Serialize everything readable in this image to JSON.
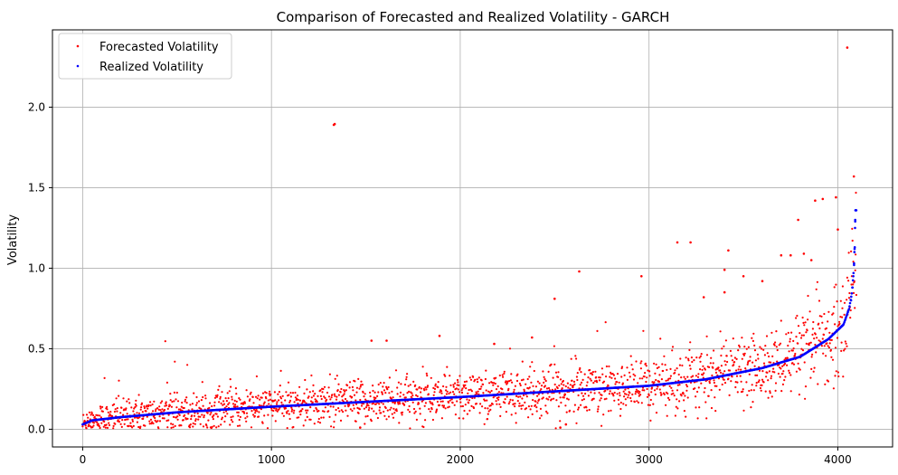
{
  "chart_data": {
    "type": "scatter",
    "title": "Comparison of Forecasted and Realized Volatility - GARCH",
    "xlabel": "",
    "ylabel": "Volatility",
    "xlim": [
      -160,
      4290
    ],
    "ylim": [
      -0.11,
      2.48
    ],
    "x_ticks": [
      0,
      1000,
      2000,
      3000,
      4000
    ],
    "y_ticks": [
      0.0,
      0.5,
      1.0,
      1.5,
      2.0
    ],
    "x_tick_labels": [
      "0",
      "1000",
      "2000",
      "3000",
      "4000"
    ],
    "y_tick_labels": [
      "0.0",
      "0.5",
      "1.0",
      "1.5",
      "2.0"
    ],
    "grid": true,
    "legend_position": "top-left",
    "n_points": 4100,
    "series": [
      {
        "name": "Forecasted Volatility",
        "color": "#ff0000",
        "marker": "point",
        "description": "noisy scatter around realized curve",
        "outliers": [
          {
            "x": 1330,
            "y": 1.89
          },
          {
            "x": 1335,
            "y": 1.895
          },
          {
            "x": 4050,
            "y": 2.37
          },
          {
            "x": 4085,
            "y": 1.57
          },
          {
            "x": 3880,
            "y": 1.42
          },
          {
            "x": 3920,
            "y": 1.43
          },
          {
            "x": 3990,
            "y": 1.44
          },
          {
            "x": 4000,
            "y": 1.24
          },
          {
            "x": 3790,
            "y": 1.3
          },
          {
            "x": 3150,
            "y": 1.16
          },
          {
            "x": 3220,
            "y": 1.16
          },
          {
            "x": 3420,
            "y": 1.11
          },
          {
            "x": 3400,
            "y": 0.99
          },
          {
            "x": 3500,
            "y": 0.95
          },
          {
            "x": 2960,
            "y": 0.95
          },
          {
            "x": 2630,
            "y": 0.98
          },
          {
            "x": 2500,
            "y": 0.81
          },
          {
            "x": 3400,
            "y": 0.85
          },
          {
            "x": 3290,
            "y": 0.82
          },
          {
            "x": 3600,
            "y": 0.92
          },
          {
            "x": 3700,
            "y": 1.08
          },
          {
            "x": 3750,
            "y": 1.08
          },
          {
            "x": 3820,
            "y": 1.09
          },
          {
            "x": 3860,
            "y": 1.05
          },
          {
            "x": 1890,
            "y": 0.58
          },
          {
            "x": 1530,
            "y": 0.55
          },
          {
            "x": 1610,
            "y": 0.55
          },
          {
            "x": 2180,
            "y": 0.53
          },
          {
            "x": 2380,
            "y": 0.57
          },
          {
            "x": 1470,
            "y": 0.01
          },
          {
            "x": 2530,
            "y": 0.01
          },
          {
            "x": 2560,
            "y": 0.03
          }
        ]
      },
      {
        "name": "Realized Volatility",
        "color": "#0000ff",
        "marker": "point",
        "description": "sorted increasing curve from ~0.03 at x=0 to ~1.36 at x~4090",
        "curve_points": [
          {
            "x": 0,
            "y": 0.03
          },
          {
            "x": 50,
            "y": 0.055
          },
          {
            "x": 200,
            "y": 0.075
          },
          {
            "x": 500,
            "y": 0.105
          },
          {
            "x": 1000,
            "y": 0.14
          },
          {
            "x": 1500,
            "y": 0.17
          },
          {
            "x": 2000,
            "y": 0.2
          },
          {
            "x": 2500,
            "y": 0.235
          },
          {
            "x": 3000,
            "y": 0.27
          },
          {
            "x": 3300,
            "y": 0.31
          },
          {
            "x": 3600,
            "y": 0.38
          },
          {
            "x": 3800,
            "y": 0.45
          },
          {
            "x": 3950,
            "y": 0.56
          },
          {
            "x": 4030,
            "y": 0.65
          },
          {
            "x": 4060,
            "y": 0.75
          },
          {
            "x": 4075,
            "y": 0.85
          },
          {
            "x": 4085,
            "y": 1.0
          },
          {
            "x": 4090,
            "y": 1.15
          },
          {
            "x": 4093,
            "y": 1.36
          }
        ]
      }
    ]
  }
}
